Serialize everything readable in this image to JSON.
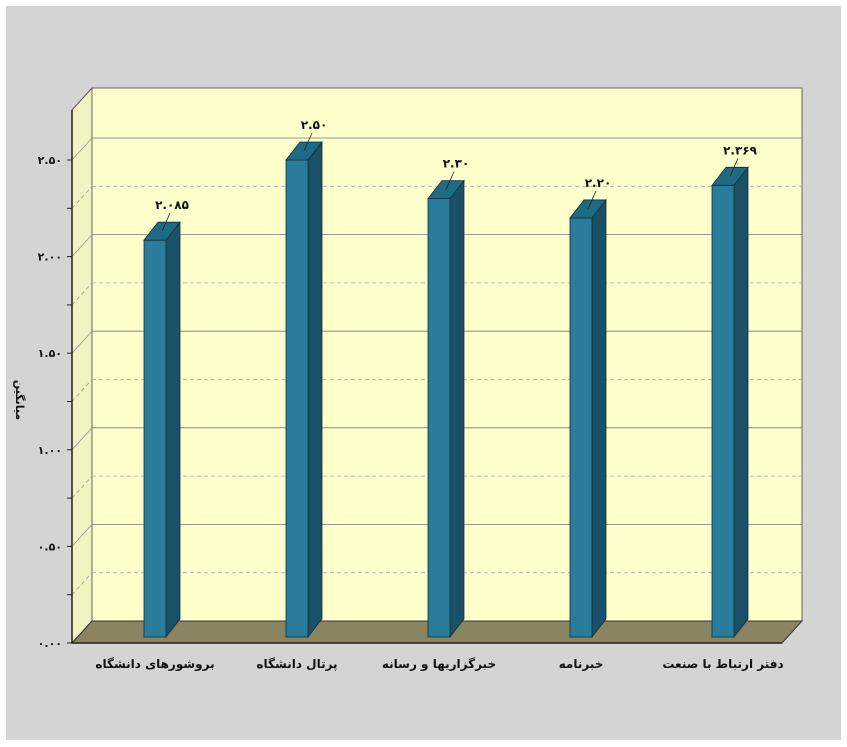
{
  "chart_data": {
    "type": "bar",
    "title": "",
    "xlabel": "",
    "ylabel": "میانگین",
    "categories": [
      "بروشورهای دانشگاه",
      "پرتال دانشگاه",
      "خبرگزاریها و رسانه",
      "خبرنامه",
      "دفتر ارتباط با صنعت"
    ],
    "values": [
      2.085,
      2.5,
      2.3,
      2.2,
      2.369
    ],
    "data_labels": [
      "۲.۰۸۵",
      "۲.۵۰",
      "۲.۳۰",
      "۲.۲۰",
      "۲.۳۶۹"
    ],
    "ylim": [
      0,
      2.5
    ],
    "yticks": [
      0,
      0.5,
      1.0,
      1.5,
      2.0,
      2.5
    ],
    "ytick_labels": [
      "۰.۰۰",
      "۰.۵۰",
      "۱.۰۰",
      "۱.۵۰",
      "۲.۰۰",
      "۲.۵۰"
    ],
    "grid": true,
    "legend": "none",
    "colors": {
      "bar_front": "#2a7d9a",
      "bar_side": "#1b5168",
      "bar_top": "#1f6a85",
      "plot_background": "#ffffcc",
      "floor": "#8a8560",
      "frame_background": "#d4d4d4"
    }
  }
}
